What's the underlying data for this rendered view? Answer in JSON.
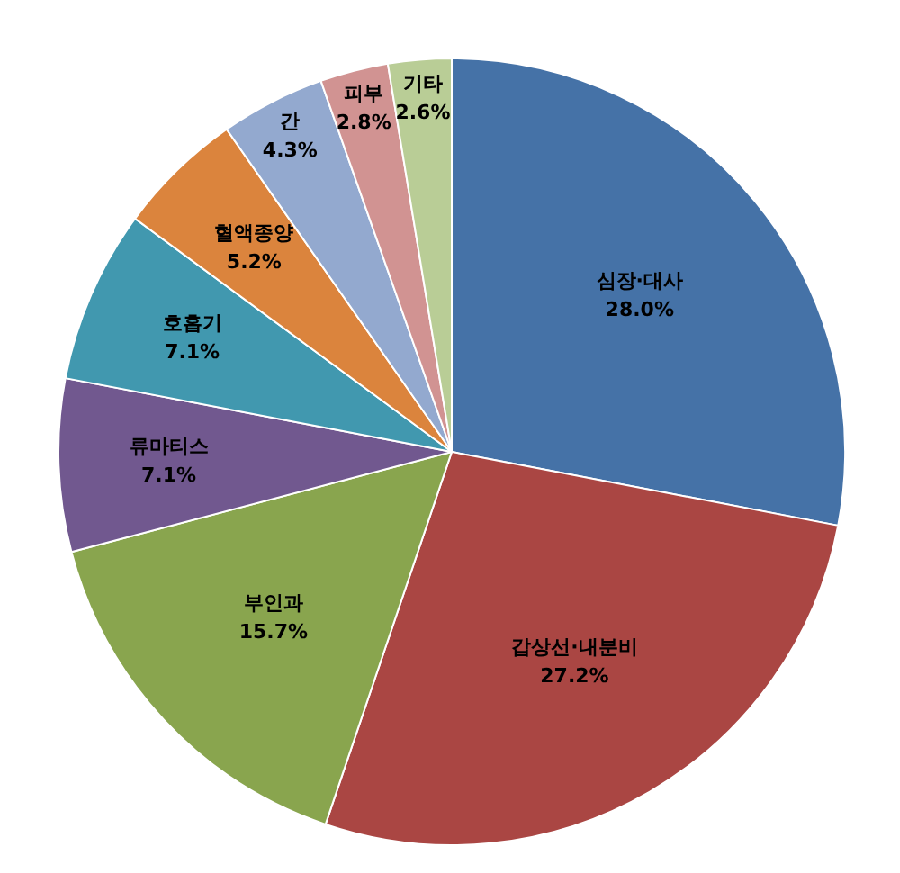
{
  "chart_data": {
    "type": "pie",
    "categories": [
      "심장·대사",
      "갑상선·내분비",
      "부인과",
      "류마티스",
      "호흡기",
      "혈액종양",
      "간",
      "피부",
      "기타"
    ],
    "values": [
      28.0,
      27.2,
      15.7,
      7.1,
      7.1,
      5.2,
      4.3,
      2.8,
      2.6
    ],
    "value_labels": [
      "28.0%",
      "27.2%",
      "15.7%",
      "7.1%",
      "7.1%",
      "5.2%",
      "4.3%",
      "2.8%",
      "2.6%"
    ],
    "colors": [
      "#4572a7",
      "#aa4643",
      "#89a54e",
      "#71588f",
      "#4198af",
      "#db843d",
      "#93a9cf",
      "#d19392",
      "#b9cd96"
    ],
    "legend": false
  }
}
